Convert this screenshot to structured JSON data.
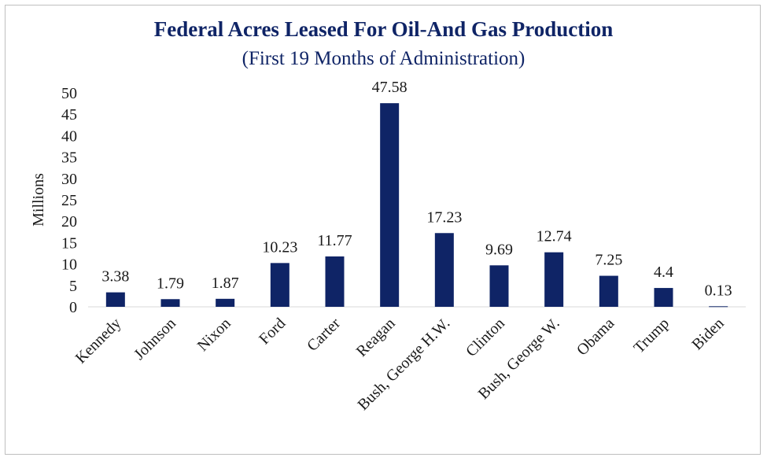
{
  "chart_data": {
    "type": "bar",
    "title": "Federal Acres Leased For Oil-And Gas Production",
    "subtitle": "(First 19 Months of Administration)",
    "ylabel": "Millions",
    "xlabel": "",
    "categories": [
      "Kennedy",
      "Johnson",
      "Nixon",
      "Ford",
      "Carter",
      "Reagan",
      "Bush, George H.W.",
      "Clinton",
      "Bush, George W.",
      "Obama",
      "Trump",
      "Biden"
    ],
    "values": [
      3.38,
      1.79,
      1.87,
      10.23,
      11.77,
      47.58,
      17.23,
      9.69,
      12.74,
      7.25,
      4.4,
      0.13
    ],
    "value_labels": [
      "3.38",
      "1.79",
      "1.87",
      "10.23",
      "11.77",
      "47.58",
      "17.23",
      "9.69",
      "12.74",
      "7.25",
      "4.4",
      "0.13"
    ],
    "yticks": [
      "0",
      "5",
      "10",
      "15",
      "20",
      "25",
      "30",
      "35",
      "40",
      "45",
      "50"
    ],
    "ylim": [
      0,
      50
    ],
    "grid": false,
    "legend": "none",
    "bar_color": "#0f2466"
  }
}
